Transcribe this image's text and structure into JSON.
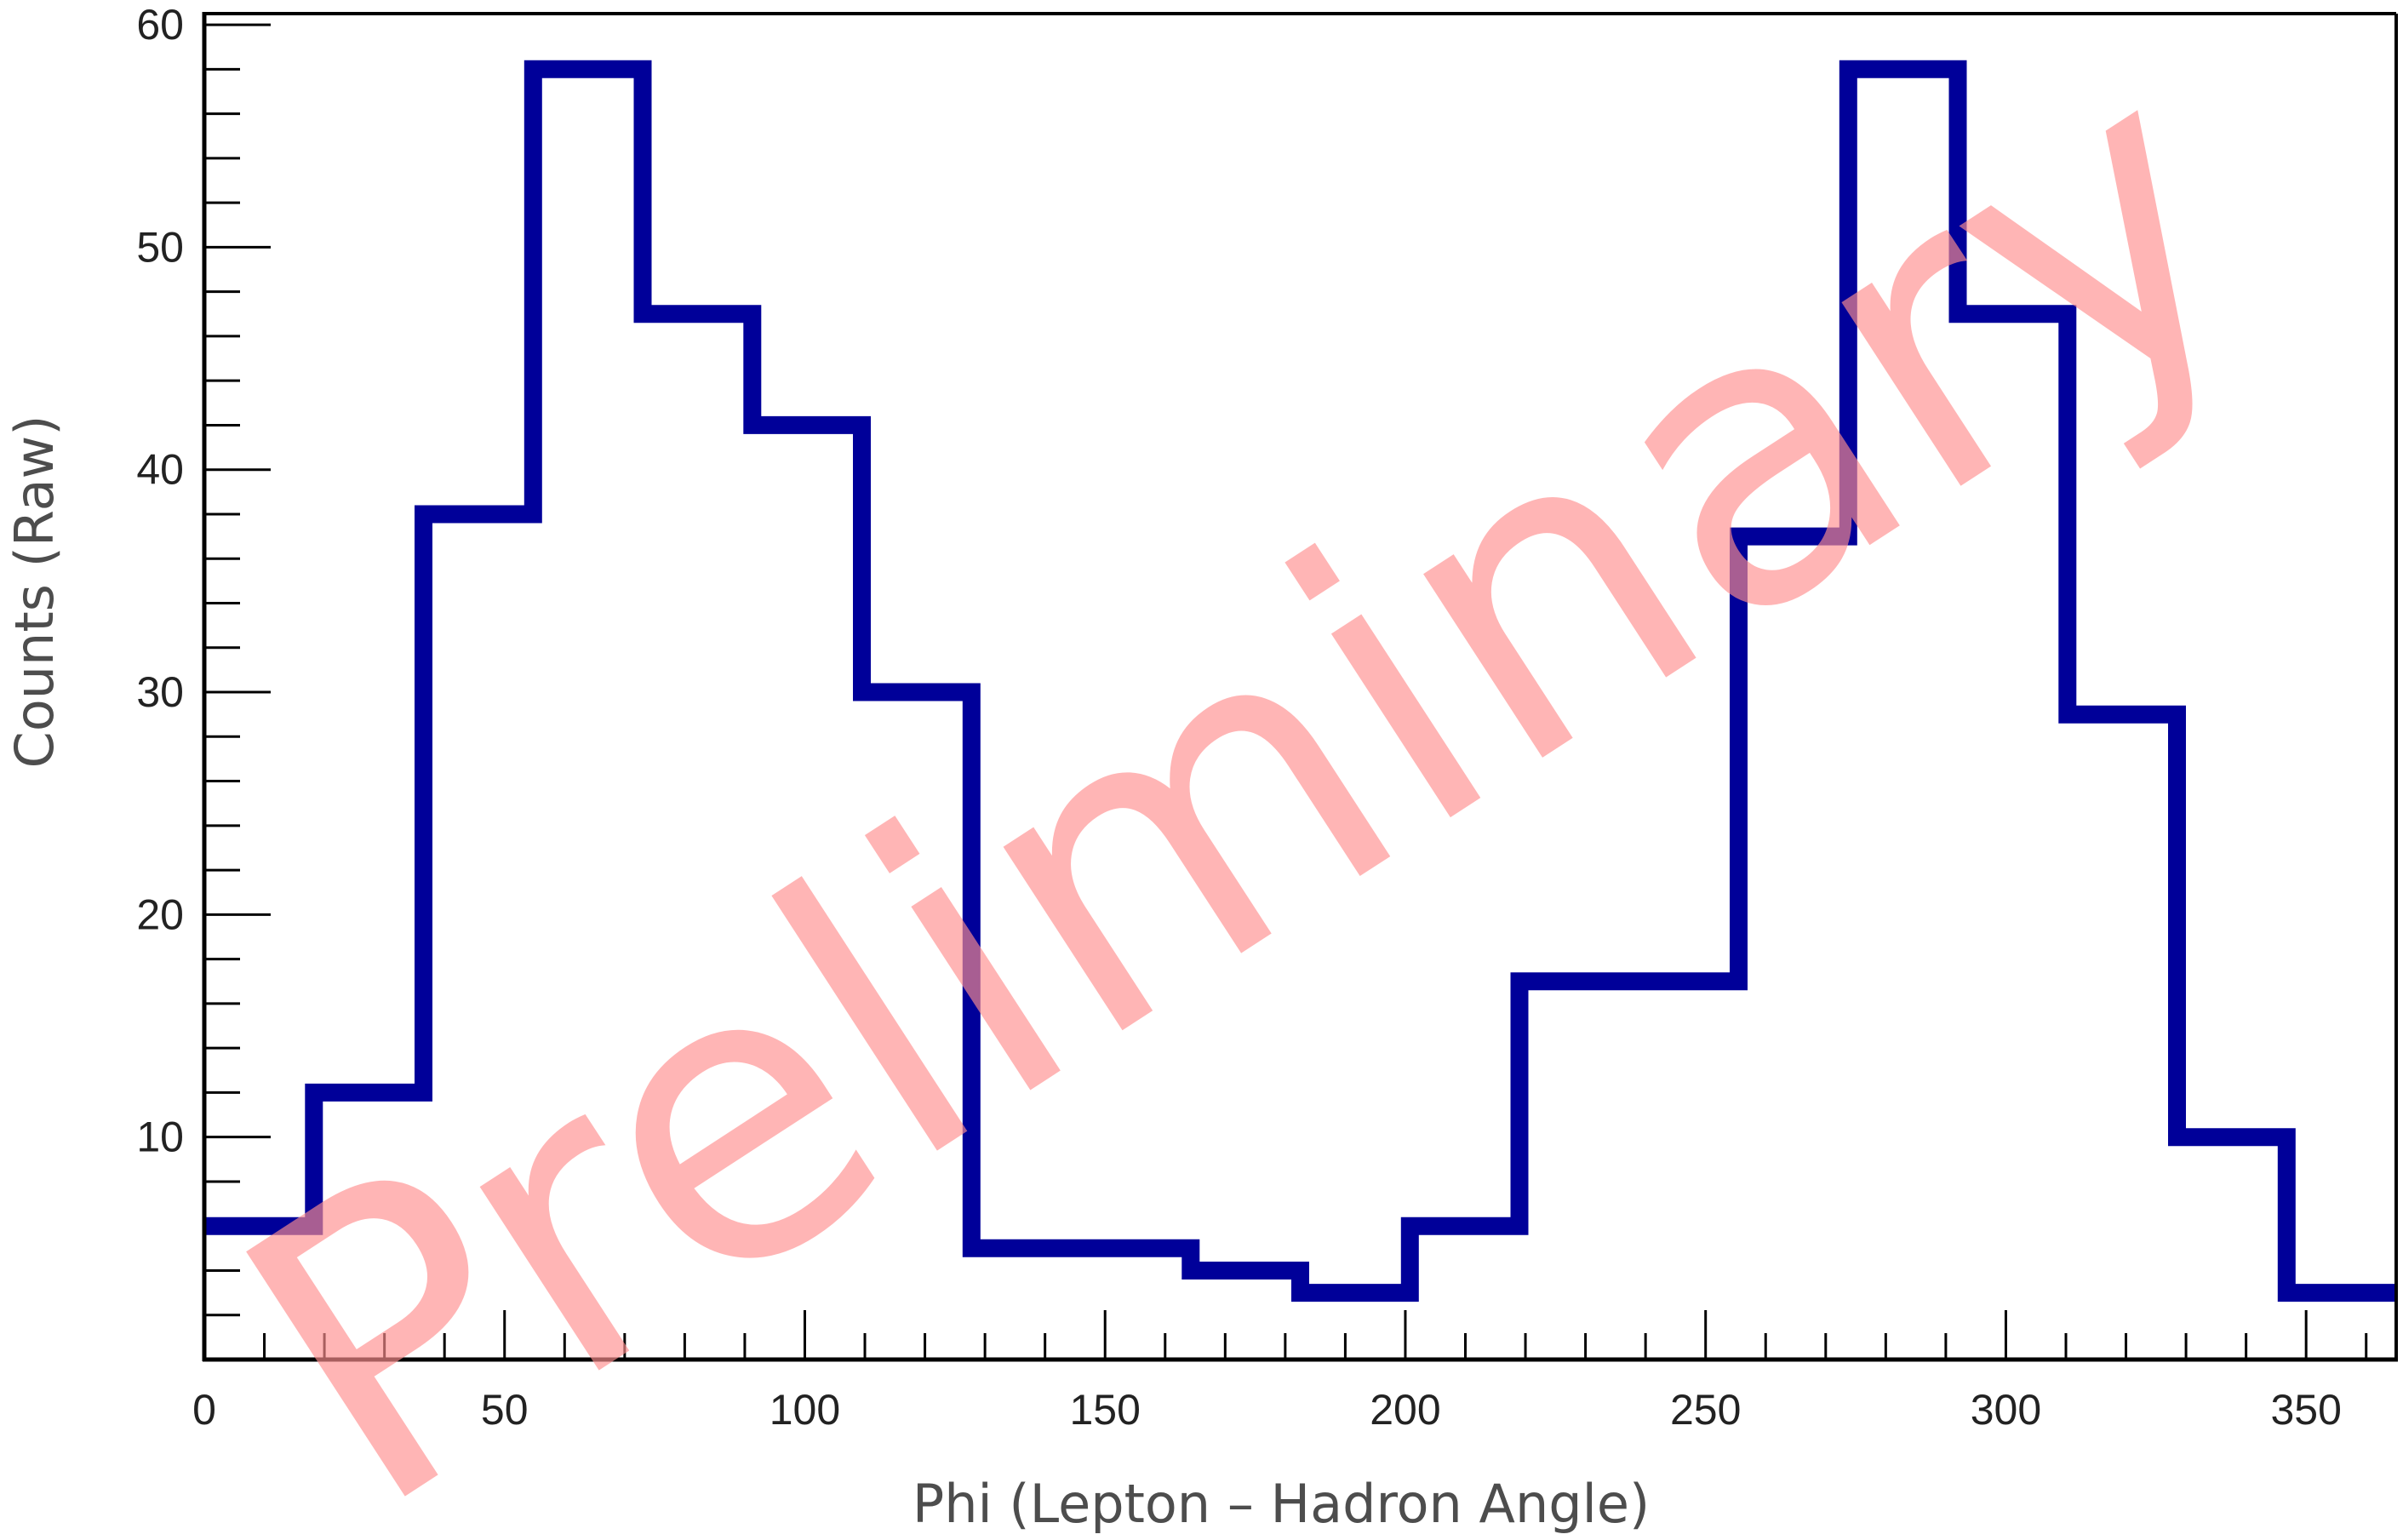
{
  "chart_data": {
    "type": "histogram",
    "title": "",
    "xlabel": "Phi (Lepton – Hadron Angle)",
    "ylabel": "Counts (Raw)",
    "xlim": [
      0,
      365
    ],
    "ylim": [
      0,
      60.5
    ],
    "x_ticks": [
      0,
      50,
      100,
      150,
      200,
      250,
      300,
      350
    ],
    "x_tick_labels": [
      "0",
      "50",
      "100",
      "150",
      "200",
      "250",
      "300",
      "350"
    ],
    "y_ticks": [
      10,
      20,
      30,
      40,
      50,
      60
    ],
    "y_tick_labels": [
      "10",
      "20",
      "30",
      "40",
      "50",
      "60"
    ],
    "bin_edges": [
      0,
      18.25,
      36.5,
      54.75,
      73,
      91.25,
      109.5,
      127.75,
      146,
      164.25,
      182.5,
      200.75,
      219,
      237.25,
      255.5,
      273.75,
      292,
      310.25,
      328.5,
      346.75,
      365
    ],
    "values": [
      6,
      12,
      38,
      58,
      47,
      42,
      30,
      5,
      5,
      4,
      3,
      6,
      17,
      17,
      37,
      58,
      47,
      29,
      10,
      3
    ],
    "line_color": "#000099",
    "grid": false,
    "legend": "none",
    "watermark": "Preliminary",
    "watermark_color": "#ff8f8f"
  }
}
